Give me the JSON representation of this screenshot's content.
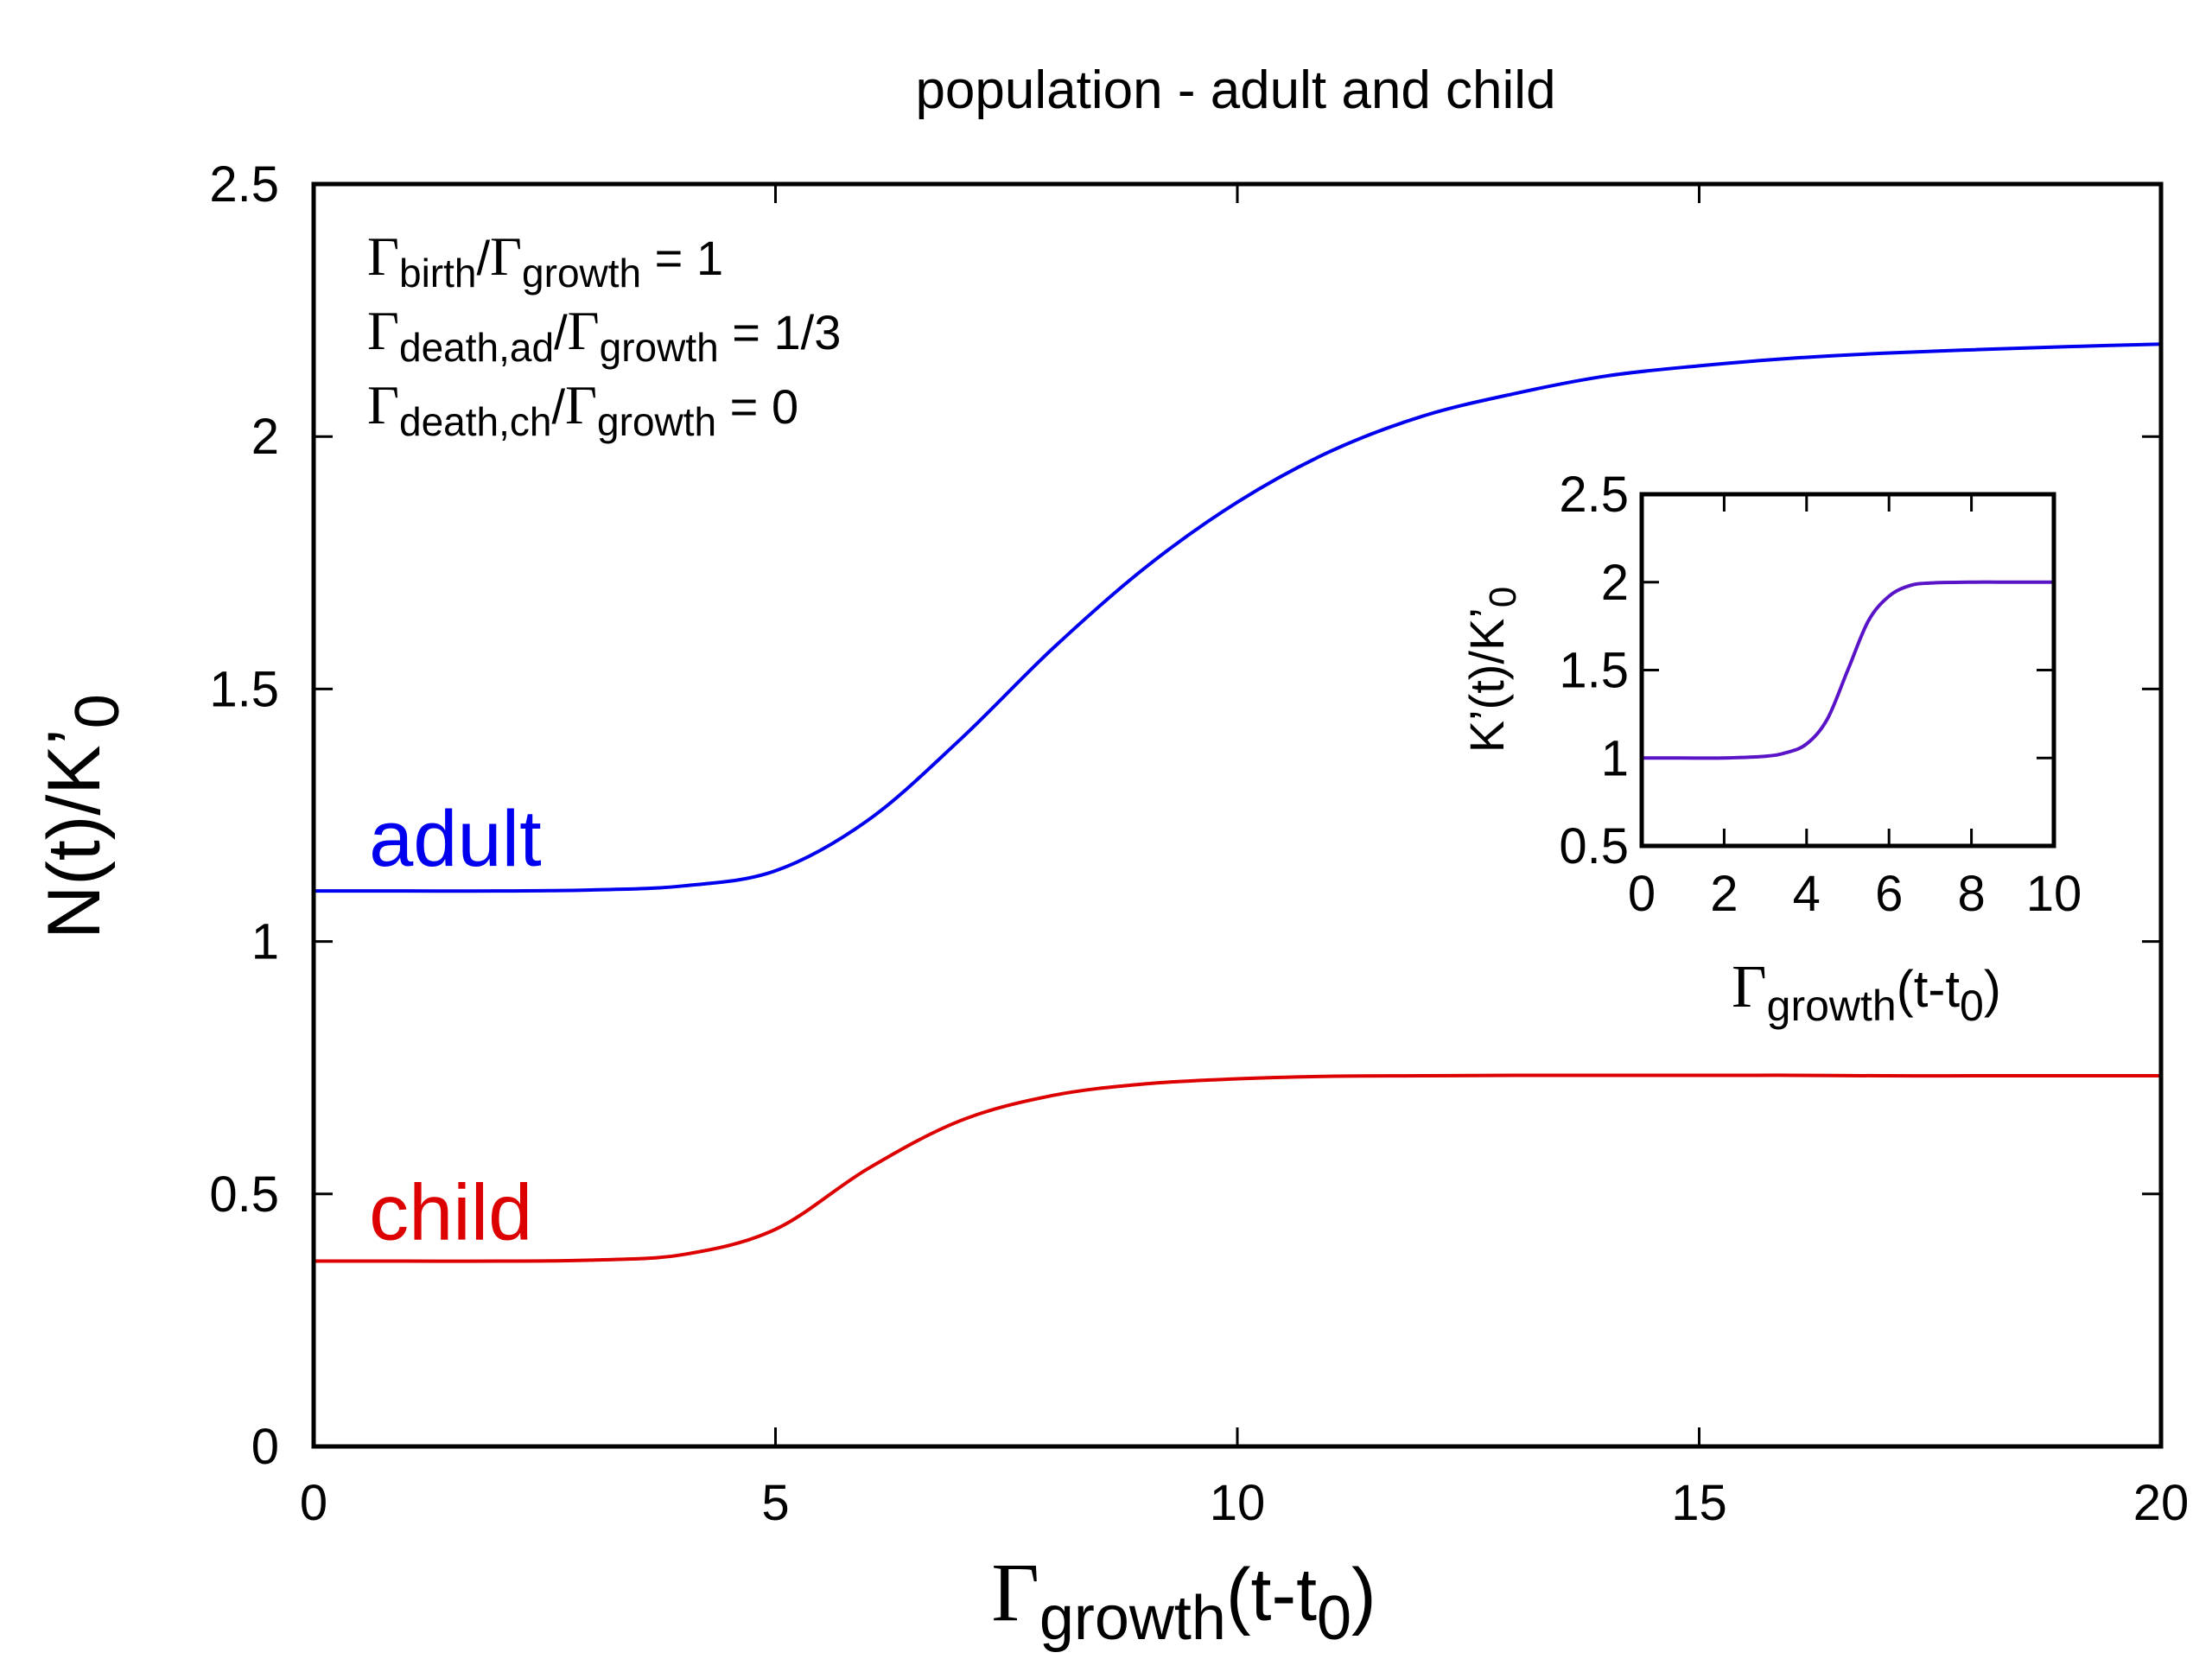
{
  "chart_data": [
    {
      "type": "line",
      "title": "population - adult and child",
      "xlabel": {
        "symbol": "Γ",
        "sub": "growth",
        "rest": "(t-t",
        "sub2": "0",
        "end": ")"
      },
      "ylabel": {
        "main": "N(t)/K’",
        "sub": "0"
      },
      "xlim": [
        0,
        20
      ],
      "ylim": [
        0,
        2.5
      ],
      "xticks": [
        0,
        5,
        10,
        15,
        20
      ],
      "xtick_labels": [
        "0",
        "5",
        "10",
        "15",
        "20"
      ],
      "yticks": [
        0,
        0.5,
        1,
        1.5,
        2,
        2.5
      ],
      "ytick_labels": [
        "0",
        "0.5",
        "1",
        "1.5",
        "2",
        "2.5"
      ],
      "annotations": [
        {
          "sym": "Γ",
          "sub1": "birth",
          "mid": "/",
          "sym2": "Γ",
          "sub2": "growth",
          "val": " = 1"
        },
        {
          "sym": "Γ",
          "sub1": "death,ad",
          "mid": "/",
          "sym2": "Γ",
          "sub2": "growth",
          "val": " = 1/3"
        },
        {
          "sym": "Γ",
          "sub1": "death,ch",
          "mid": "/",
          "sym2": "Γ",
          "sub2": "growth",
          "val": " = 0"
        }
      ],
      "series": [
        {
          "name": "adult",
          "color": "#0000ee",
          "label_at": [
            0.6,
            1.15
          ],
          "x": [
            0,
            1,
            2,
            3,
            4,
            5,
            6,
            7,
            8,
            9,
            10,
            11,
            12,
            13,
            14,
            15,
            16,
            17,
            18,
            19,
            20
          ],
          "y": [
            1.1,
            1.1,
            1.1,
            1.102,
            1.11,
            1.14,
            1.24,
            1.4,
            1.58,
            1.74,
            1.87,
            1.97,
            2.04,
            2.085,
            2.12,
            2.14,
            2.155,
            2.165,
            2.172,
            2.178,
            2.183
          ]
        },
        {
          "name": "child",
          "color": "#dd0000",
          "label_at": [
            0.6,
            0.41
          ],
          "x": [
            0,
            1,
            2,
            3,
            4,
            5,
            6,
            7,
            8,
            9,
            10,
            11,
            12,
            13,
            14,
            15,
            16,
            17,
            18,
            19,
            20
          ],
          "y": [
            0.367,
            0.367,
            0.367,
            0.369,
            0.38,
            0.43,
            0.55,
            0.645,
            0.695,
            0.718,
            0.728,
            0.733,
            0.734,
            0.735,
            0.735,
            0.735,
            0.735,
            0.734,
            0.734,
            0.734,
            0.734
          ]
        }
      ]
    },
    {
      "type": "line",
      "title": "",
      "xlabel": {
        "symbol": "Γ",
        "sub": "growth",
        "rest": "(t-t",
        "sub2": "0",
        "end": ")"
      },
      "ylabel": {
        "main": "K’(t)/K’",
        "sub": "0"
      },
      "xlim": [
        0,
        10
      ],
      "ylim": [
        0.5,
        2.5
      ],
      "xticks": [
        0,
        2,
        4,
        6,
        8,
        10
      ],
      "xtick_labels": [
        "0",
        "2",
        "4",
        "6",
        "8",
        "10"
      ],
      "yticks": [
        0.5,
        1,
        1.5,
        2,
        2.5
      ],
      "ytick_labels": [
        "0.5",
        "1",
        "1.5",
        "2",
        "2.5"
      ],
      "series": [
        {
          "name": "K'",
          "color": "#5a14c8",
          "x": [
            0,
            1,
            2,
            3,
            3.5,
            4,
            4.5,
            5,
            5.5,
            6,
            6.5,
            7,
            8,
            9,
            10
          ],
          "y": [
            1,
            1,
            1.0,
            1.01,
            1.03,
            1.08,
            1.22,
            1.5,
            1.78,
            1.92,
            1.98,
            1.995,
            2,
            2,
            2
          ]
        }
      ]
    }
  ]
}
